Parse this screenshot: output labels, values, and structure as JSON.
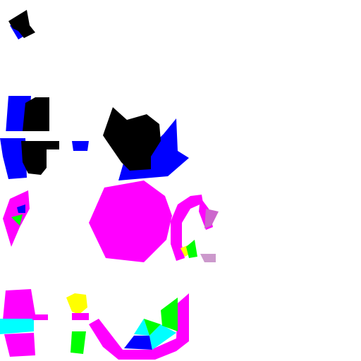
{
  "colors": {
    "background": "#ffffff",
    "black": "#000000",
    "blue": "#0000ff",
    "magenta": "#ff00ff",
    "cyan": "#00ffff",
    "green": "#00ff00",
    "yellow": "#ffff00",
    "lavender": "#cc66cc",
    "light-purple": "#cc99cc"
  },
  "fragments": [
    {
      "name": "fragment-top-left-wedge",
      "colors": [
        "black",
        "blue"
      ]
    },
    {
      "name": "fragment-left-block",
      "colors": [
        "blue",
        "black"
      ]
    },
    {
      "name": "fragment-small-blue-bar",
      "colors": [
        "blue"
      ]
    },
    {
      "name": "fragment-star-shape",
      "colors": [
        "black",
        "blue"
      ]
    },
    {
      "name": "fragment-left-magenta-shard",
      "colors": [
        "magenta",
        "blue",
        "green"
      ]
    },
    {
      "name": "fragment-magenta-octagon",
      "colors": [
        "magenta"
      ]
    },
    {
      "name": "fragment-magenta-hook",
      "colors": [
        "magenta",
        "lavender",
        "green",
        "yellow"
      ]
    },
    {
      "name": "fragment-bottom-left-block",
      "colors": [
        "magenta",
        "cyan"
      ]
    },
    {
      "name": "fragment-small-yellow-green",
      "colors": [
        "yellow",
        "magenta",
        "green"
      ]
    },
    {
      "name": "fragment-bottom-bowl",
      "colors": [
        "magenta",
        "blue",
        "cyan",
        "green"
      ]
    }
  ]
}
